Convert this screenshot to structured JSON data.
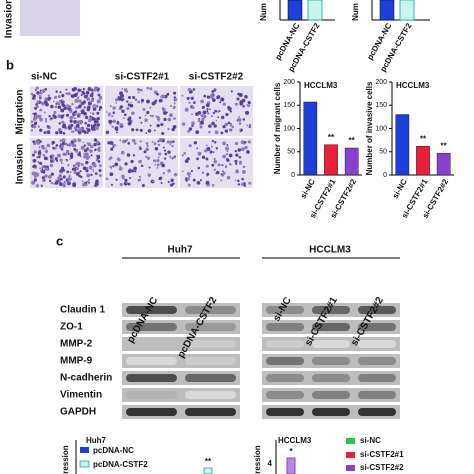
{
  "top": {
    "row_label": "Invasion",
    "y_label_1": "Num",
    "y_label_2": "Num",
    "categories": [
      "pcDNA-NC",
      "pcDNA-CSTF2"
    ]
  },
  "panel_b": {
    "label": "b",
    "columns": [
      "si-NC",
      "si-CSTF2#1",
      "si-CSTF2#2"
    ],
    "rows": [
      "Migration",
      "Invasion"
    ]
  },
  "chart_data": [
    {
      "type": "bar",
      "title": "HCCLM3",
      "y_label": "Number of migrant cells",
      "categories": [
        "si-NC",
        "si-CSTF2#1",
        "si-CSTF2#2"
      ],
      "values": [
        157,
        65,
        58
      ],
      "colors": [
        "#1e3fd8",
        "#e8203c",
        "#8a3fd0"
      ],
      "annotations": [
        null,
        "**",
        "**"
      ],
      "ylim": [
        0,
        200
      ],
      "yticks": [
        0,
        50,
        100,
        150,
        200
      ]
    },
    {
      "type": "bar",
      "title": "HCCLM3",
      "y_label": "Number of invasive cells",
      "categories": [
        "si-NC",
        "si-CSTF2#1",
        "si-CSTF2#2"
      ],
      "values": [
        130,
        62,
        47
      ],
      "colors": [
        "#1e3fd8",
        "#e8203c",
        "#8a3fd0"
      ],
      "annotations": [
        null,
        "**",
        "**"
      ],
      "ylim": [
        0,
        200
      ],
      "yticks": [
        0,
        50,
        100,
        150,
        200
      ]
    }
  ],
  "panel_c": {
    "label": "c",
    "groups": [
      {
        "name": "Huh7",
        "lanes": [
          "pcDNA-NC",
          "pcDNA-CSTF2"
        ]
      },
      {
        "name": "HCCLM3",
        "lanes": [
          "si-NC",
          "si-CSTF2#1",
          "si-CSTF2#2"
        ]
      }
    ],
    "proteins": [
      "Claudin 1",
      "ZO-1",
      "MMP-2",
      "MMP-9",
      "N-cadherin",
      "Vimentin",
      "GAPDH"
    ]
  },
  "panel_d": {
    "left": {
      "title": "Huh7",
      "y_label": "gression",
      "legend": [
        "pcDNA-NC",
        "pcDNA-CSTF2"
      ],
      "annotation": "**"
    },
    "right": {
      "title": "HCCLM3",
      "y_label": "gression",
      "ytick": "4",
      "annotation": "*",
      "legend": [
        "si-NC",
        "si-CSTF2#1",
        "si-CSTF2#2"
      ]
    }
  }
}
